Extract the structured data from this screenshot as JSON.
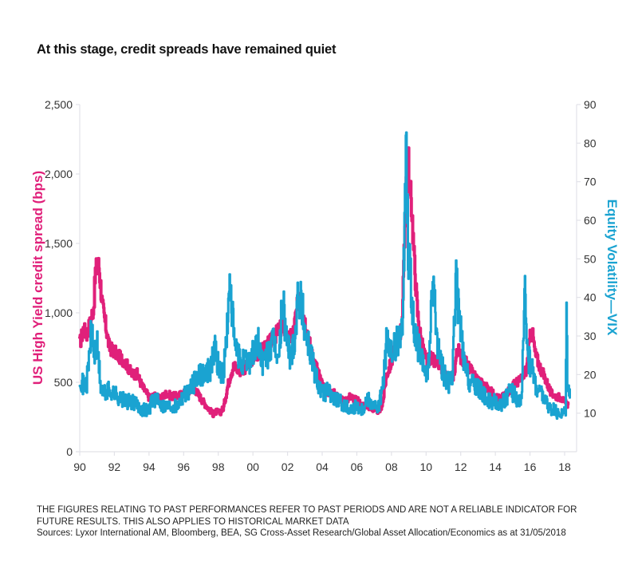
{
  "chart_data": {
    "type": "line",
    "title": "At this stage, credit spreads have remained quiet",
    "xlabel": "",
    "x_tick_labels": [
      "90",
      "92",
      "94",
      "96",
      "98",
      "00",
      "02",
      "04",
      "06",
      "08",
      "10",
      "12",
      "14",
      "16",
      "18"
    ],
    "x_range": [
      1990,
      2018.3
    ],
    "y_left": {
      "label": "US High Yield credit spread (bps)",
      "range": [
        0,
        2500
      ],
      "tick_labels": [
        "0",
        "500",
        "1,000",
        "1,500",
        "2,000",
        "2,500"
      ],
      "tick_values": [
        0,
        500,
        1000,
        1500,
        2000,
        2500
      ]
    },
    "y_right": {
      "label": "Equity Volatility—VIX",
      "range": [
        0,
        90
      ],
      "tick_labels": [
        "10",
        "20",
        "30",
        "40",
        "50",
        "60",
        "70",
        "80",
        "90"
      ],
      "tick_values": [
        10,
        20,
        30,
        40,
        50,
        60,
        70,
        80,
        90
      ]
    },
    "grid": false,
    "legend": "none",
    "series": [
      {
        "name": "US High Yield credit spread (bps)",
        "axis": "left",
        "color": "#E0207A",
        "x": [
          1990.0,
          1990.2,
          1990.4,
          1990.6,
          1990.8,
          1990.9,
          1991.0,
          1991.1,
          1991.2,
          1991.3,
          1991.5,
          1991.7,
          1992.0,
          1992.3,
          1992.6,
          1993.0,
          1993.3,
          1993.6,
          1994.0,
          1994.3,
          1994.6,
          1995.0,
          1995.3,
          1995.6,
          1996.0,
          1996.3,
          1996.6,
          1997.0,
          1997.3,
          1997.5,
          1997.7,
          1997.9,
          1998.1,
          1998.3,
          1998.5,
          1998.7,
          1998.9,
          1999.2,
          1999.5,
          1999.8,
          2000.0,
          2000.3,
          2000.6,
          2000.9,
          2001.2,
          2001.5,
          2001.8,
          2002.0,
          2002.3,
          2002.5,
          2002.7,
          2002.9,
          2003.1,
          2003.4,
          2003.7,
          2004.0,
          2004.3,
          2004.6,
          2005.0,
          2005.3,
          2005.6,
          2006.0,
          2006.3,
          2006.6,
          2007.0,
          2007.3,
          2007.5,
          2007.7,
          2008.0,
          2008.3,
          2008.6,
          2008.75,
          2008.85,
          2008.95,
          2009.05,
          2009.15,
          2009.3,
          2009.5,
          2009.7,
          2010.0,
          2010.3,
          2010.5,
          2010.8,
          2011.0,
          2011.3,
          2011.6,
          2011.8,
          2012.0,
          2012.3,
          2012.6,
          2013.0,
          2013.3,
          2013.6,
          2014.0,
          2014.3,
          2014.6,
          2014.9,
          2015.2,
          2015.5,
          2015.8,
          2016.0,
          2016.1,
          2016.3,
          2016.6,
          2016.9,
          2017.2,
          2017.5,
          2017.8,
          2018.0,
          2018.2
        ],
        "values": [
          780,
          880,
          850,
          930,
          1050,
          1300,
          1330,
          1340,
          1200,
          1050,
          900,
          750,
          720,
          680,
          650,
          560,
          560,
          470,
          390,
          400,
          380,
          420,
          400,
          400,
          420,
          440,
          460,
          380,
          330,
          300,
          270,
          290,
          280,
          320,
          450,
          560,
          620,
          580,
          600,
          640,
          680,
          700,
          740,
          780,
          820,
          880,
          900,
          800,
          850,
          1000,
          1150,
          1000,
          880,
          700,
          600,
          470,
          430,
          430,
          380,
          360,
          400,
          370,
          340,
          330,
          300,
          290,
          360,
          550,
          650,
          800,
          900,
          1500,
          2000,
          2150,
          1850,
          1800,
          1400,
          1000,
          800,
          650,
          680,
          650,
          620,
          560,
          500,
          560,
          750,
          680,
          640,
          580,
          520,
          480,
          450,
          400,
          380,
          420,
          460,
          500,
          520,
          600,
          820,
          880,
          700,
          600,
          520,
          420,
          400,
          390,
          350,
          340
        ],
        "note": "approximate values read from chart"
      },
      {
        "name": "Equity Volatility—VIX",
        "axis": "right",
        "color": "#1AA3D1",
        "x": [
          1990.0,
          1990.2,
          1990.4,
          1990.6,
          1990.7,
          1990.8,
          1991.0,
          1991.2,
          1991.4,
          1991.7,
          1992.0,
          1992.3,
          1992.6,
          1993.0,
          1993.3,
          1993.6,
          1994.0,
          1994.2,
          1994.5,
          1994.8,
          1995.2,
          1995.6,
          1996.0,
          1996.3,
          1996.6,
          1997.0,
          1997.3,
          1997.6,
          1997.8,
          1998.0,
          1998.3,
          1998.6,
          1998.7,
          1998.9,
          1999.2,
          1999.5,
          1999.8,
          2000.0,
          2000.3,
          2000.6,
          2000.9,
          2001.2,
          2001.5,
          2001.7,
          2001.9,
          2002.2,
          2002.5,
          2002.6,
          2002.8,
          2003.0,
          2003.3,
          2003.6,
          2004.0,
          2004.3,
          2004.6,
          2005.0,
          2005.3,
          2005.6,
          2006.0,
          2006.3,
          2006.6,
          2007.0,
          2007.2,
          2007.5,
          2007.7,
          2008.0,
          2008.3,
          2008.6,
          2008.75,
          2008.85,
          2008.95,
          2009.1,
          2009.3,
          2009.5,
          2009.8,
          2010.1,
          2010.4,
          2010.6,
          2010.9,
          2011.2,
          2011.5,
          2011.7,
          2011.9,
          2012.2,
          2012.5,
          2012.8,
          2013.1,
          2013.4,
          2013.7,
          2014.0,
          2014.3,
          2014.6,
          2014.9,
          2015.2,
          2015.5,
          2015.7,
          2015.9,
          2016.1,
          2016.4,
          2016.7,
          2017.0,
          2017.3,
          2017.6,
          2017.9,
          2018.05,
          2018.1,
          2018.15,
          2018.3
        ],
        "values": [
          20,
          17,
          18,
          28,
          33,
          25,
          27,
          17,
          15,
          16,
          15,
          14,
          13,
          13,
          12,
          11,
          11,
          14,
          13,
          12,
          12,
          12,
          15,
          16,
          18,
          20,
          21,
          22,
          28,
          22,
          20,
          38,
          44,
          28,
          24,
          23,
          24,
          26,
          28,
          22,
          26,
          28,
          24,
          40,
          30,
          24,
          34,
          43,
          38,
          32,
          26,
          20,
          15,
          16,
          14,
          13,
          12,
          11,
          12,
          11,
          14,
          12,
          11,
          17,
          28,
          25,
          28,
          30,
          60,
          80,
          55,
          45,
          30,
          28,
          22,
          20,
          45,
          30,
          22,
          18,
          18,
          45,
          35,
          22,
          18,
          17,
          16,
          14,
          13,
          13,
          12,
          14,
          16,
          14,
          13,
          40,
          24,
          22,
          16,
          15,
          12,
          11,
          10,
          10,
          11,
          37,
          20,
          14
        ],
        "note": "approximate values read from chart"
      }
    ]
  },
  "footnote": {
    "disclaimer": "THE FIGURES RELATING TO PAST PERFORMANCES REFER TO PAST PERIODS AND ARE NOT A RELIABLE INDICATOR FOR FUTURE RESULTS. THIS ALSO APPLIES TO HISTORICAL MARKET DATA",
    "sources": "Sources: Lyxor International AM, Bloomberg, BEA, SG Cross-Asset Research/Global Asset Allocation/Economics as at 31/05/2018"
  }
}
